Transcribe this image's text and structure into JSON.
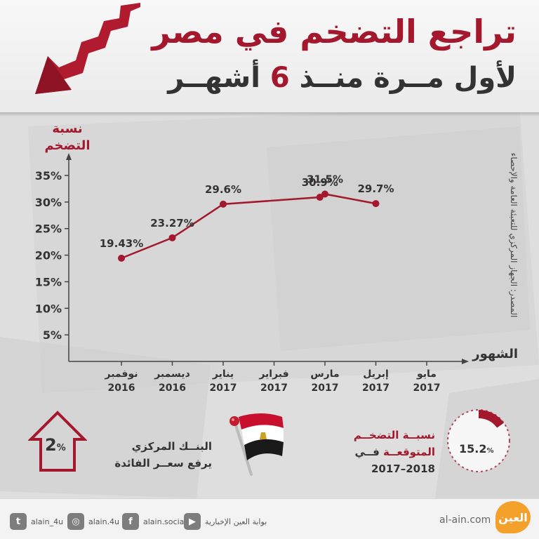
{
  "header": {
    "title_line1": "تراجع التضخم في مصر",
    "title_line2_prefix": "لأول مــرة منــذ ",
    "title_line2_number": "6",
    "title_line2_suffix": " أشهــر"
  },
  "source": "المصدر: الجهاز المركزي للتعبئة العامة والإحصاء",
  "colors": {
    "accent": "#a3182c",
    "text": "#333333",
    "logo": "#f4a12b"
  },
  "chart_data": {
    "type": "line",
    "ylabel": "نسبة التضخم",
    "xlabel": "الشهور",
    "ylim": [
      0,
      35
    ],
    "y_ticks": [
      "5%",
      "10%",
      "15%",
      "20%",
      "25%",
      "30%",
      "35%"
    ],
    "categories": [
      {
        "month": "نوفمبر",
        "year": "2016"
      },
      {
        "month": "ديسمبر",
        "year": "2016"
      },
      {
        "month": "يناير",
        "year": "2017"
      },
      {
        "month": "فبراير",
        "year": "2017"
      },
      {
        "month": "مارس",
        "year": "2017"
      },
      {
        "month": "إبريل",
        "year": "2017"
      },
      {
        "month": "مايو",
        "year": "2017"
      }
    ],
    "x": [
      0,
      1,
      2,
      3.9,
      4,
      5,
      6
    ],
    "points": [
      {
        "category_index": 0,
        "value": 19.43,
        "label": "19.43%"
      },
      {
        "category_index": 1,
        "value": 23.27,
        "label": "23.27%"
      },
      {
        "category_index": 2,
        "value": 29.6,
        "label": "29.6%"
      },
      {
        "category_index": 4,
        "value": 30.9,
        "label": "30.9%"
      },
      {
        "category_index": 5,
        "value": 31.5,
        "label": "31.5%"
      },
      {
        "category_index": 6,
        "value": 29.7,
        "label": "29.7%"
      }
    ]
  },
  "central_bank": {
    "value": "2",
    "unit": "%",
    "line1": "البنــك المركزي",
    "line2": "يرفع سعــر الفائدة"
  },
  "expected_rate": {
    "value": "15.2",
    "unit": "%",
    "fraction": 0.152,
    "line1": "نسبــة التضخــم",
    "line2_word": "المتوقعــة",
    "line2_suffix": " فــي",
    "period": "2017–2018"
  },
  "footer": {
    "social": [
      {
        "icon": "twitter-icon",
        "glyph": "t",
        "handle": "alain_4u"
      },
      {
        "icon": "instagram-icon",
        "glyph": "◎",
        "handle": "alain.4u"
      },
      {
        "icon": "facebook-icon",
        "glyph": "f",
        "handle": "alain.social"
      },
      {
        "icon": "youtube-icon",
        "glyph": "▶",
        "handle": "بوابة العين الإخبارية"
      }
    ],
    "domain": "al-ain.com",
    "logo_text": "العين"
  }
}
